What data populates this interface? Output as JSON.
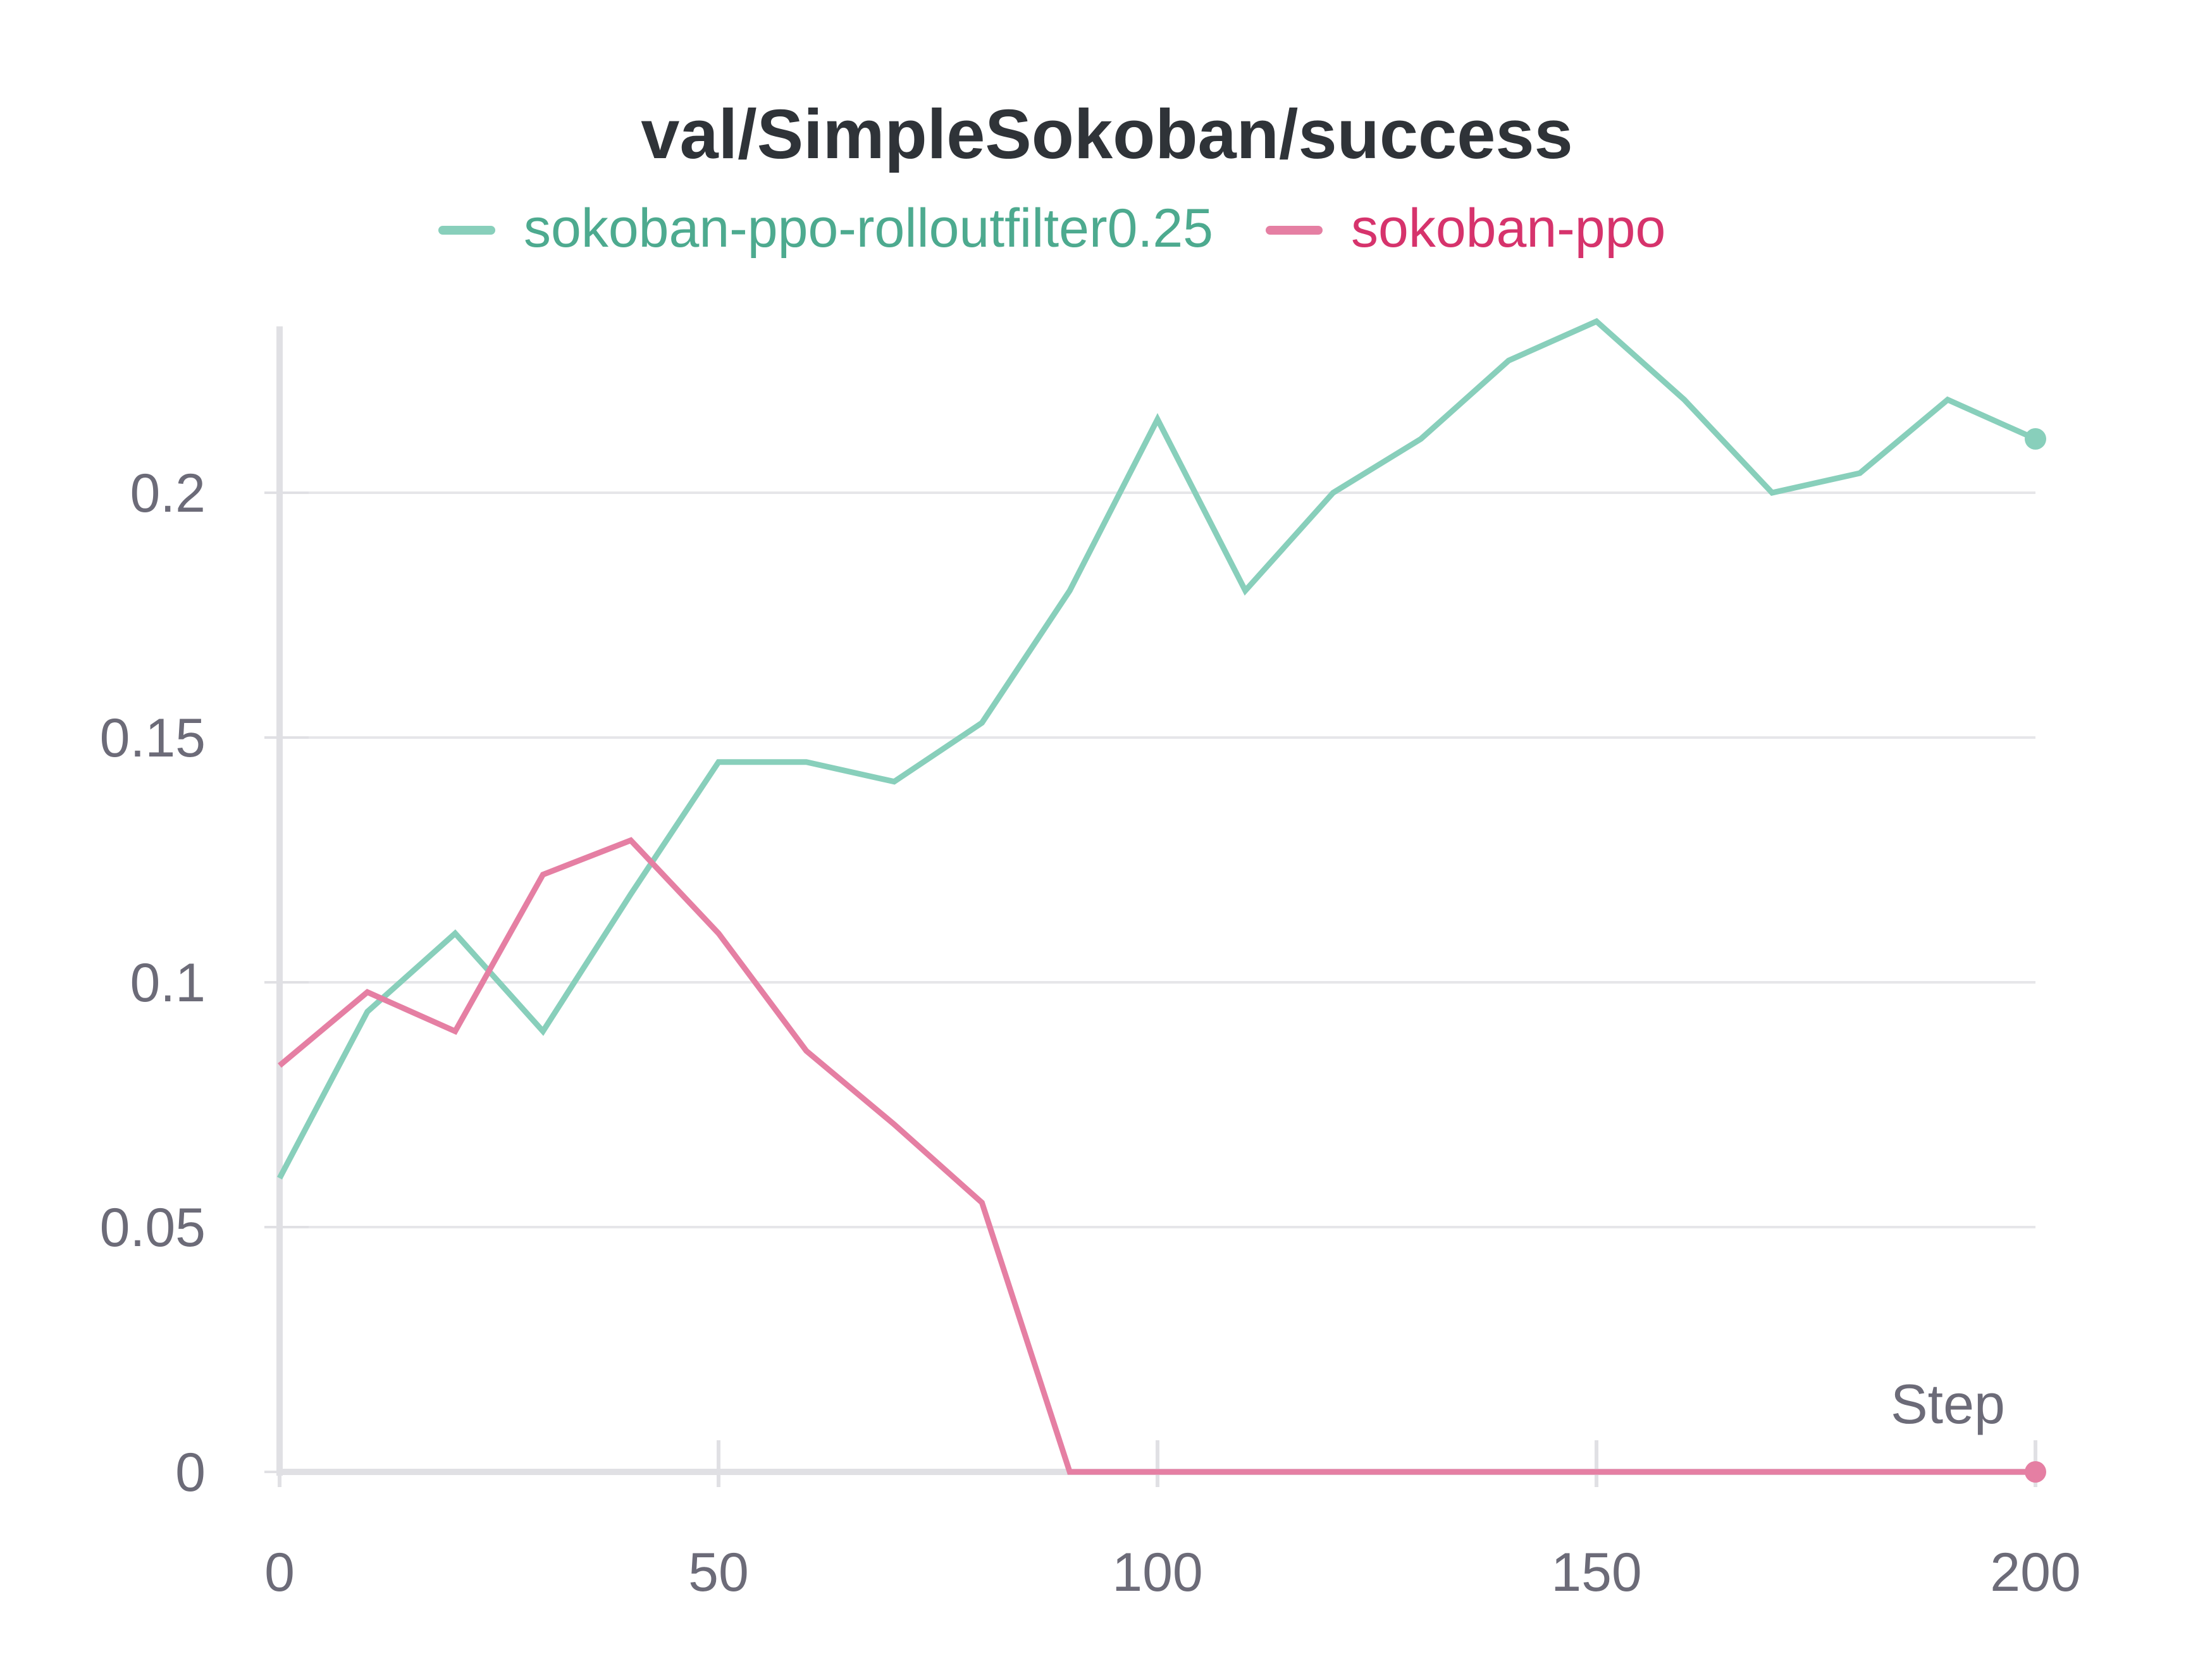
{
  "chart_data": {
    "type": "line",
    "title": "val/SimpleSokoban/success",
    "xlabel": "Step",
    "ylabel": "",
    "xlim": [
      0,
      200
    ],
    "ylim": [
      0,
      0.24
    ],
    "xticks": [
      "0",
      "50",
      "100",
      "150",
      "200"
    ],
    "xtick_values": [
      0,
      50,
      100,
      150,
      200
    ],
    "yticks": [
      "0",
      "0.05",
      "0.1",
      "0.15",
      "0.2"
    ],
    "ytick_values": [
      0,
      0.05,
      0.1,
      0.15,
      0.2
    ],
    "grid": "horizontal",
    "legend_position": "top-center",
    "series": [
      {
        "name": "sokoban-ppo-rolloutfilter0.25",
        "color": "#88cfbb",
        "legend_text_color": "#4daa8f",
        "x": [
          0,
          10,
          20,
          30,
          40,
          50,
          60,
          70,
          80,
          90,
          100,
          110,
          120,
          130,
          140,
          150,
          160,
          170,
          180,
          190,
          200
        ],
        "y": [
          0.06,
          0.094,
          0.11,
          0.09,
          0.118,
          0.145,
          0.145,
          0.141,
          0.153,
          0.18,
          0.215,
          0.18,
          0.2,
          0.211,
          0.227,
          0.235,
          0.219,
          0.2,
          0.204,
          0.219,
          0.211
        ],
        "end_marker": true
      },
      {
        "name": "sokoban-ppo",
        "color": "#e57fa3",
        "legend_text_color": "#d6336c",
        "x": [
          0,
          10,
          20,
          30,
          40,
          50,
          60,
          70,
          80,
          90,
          100,
          110,
          120,
          130,
          140,
          150,
          160,
          170,
          180,
          190,
          200
        ],
        "y": [
          0.083,
          0.098,
          0.09,
          0.122,
          0.129,
          0.11,
          0.086,
          0.071,
          0.055,
          0,
          0,
          0,
          0,
          0,
          0,
          0,
          0,
          0,
          0,
          0,
          0
        ],
        "end_marker": true
      }
    ]
  }
}
